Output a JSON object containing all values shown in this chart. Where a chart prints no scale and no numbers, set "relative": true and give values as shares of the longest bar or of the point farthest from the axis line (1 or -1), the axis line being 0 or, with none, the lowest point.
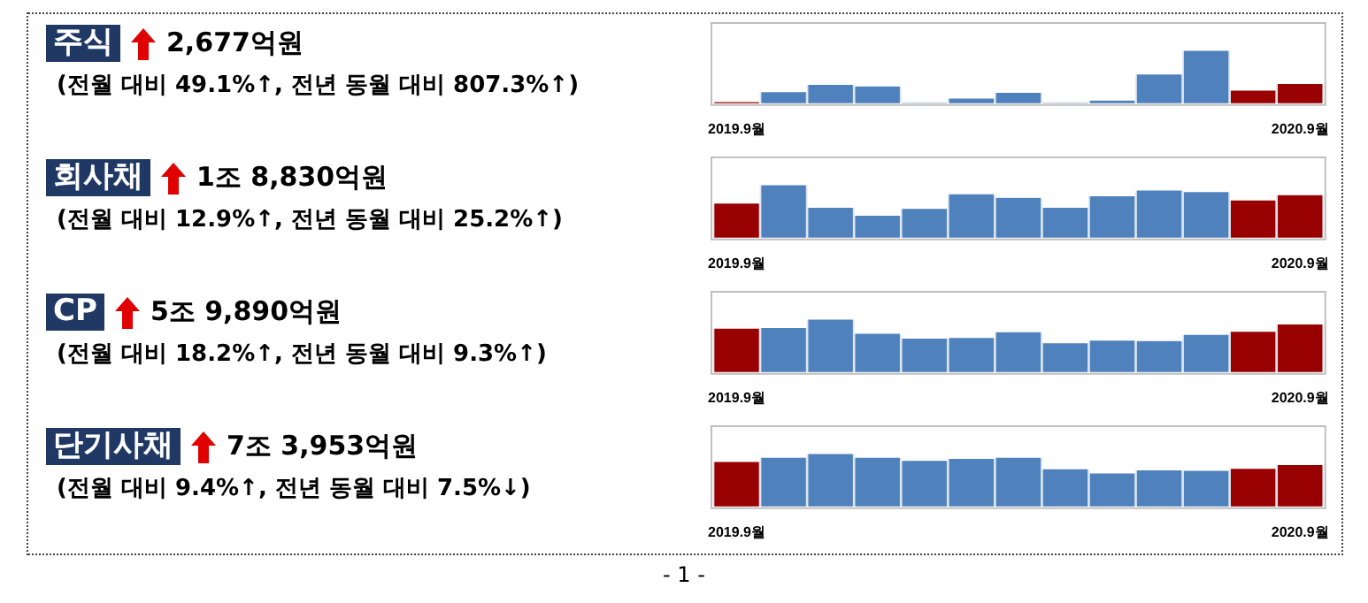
{
  "chart_data": [
    {
      "type": "bar",
      "annotations": [
        "주식",
        "2,677억원",
        "(전월 대비 49.1%↑, 전년 동월 대비 807.3%↑)"
      ],
      "relative": true,
      "categories": [
        "2019.9월",
        null,
        null,
        null,
        null,
        null,
        null,
        null,
        null,
        null,
        null,
        null,
        "2020.9월"
      ],
      "values": [
        0.02,
        0.21,
        0.35,
        0.32,
        0.01,
        0.09,
        0.2,
        0.01,
        0.05,
        0.55,
        1,
        0.24,
        0.37
      ],
      "colors": [
        "#990000",
        "#4f81bd",
        "#4f81bd",
        "#4f81bd",
        "#4f81bd",
        "#4f81bd",
        "#4f81bd",
        "#4f81bd",
        "#4f81bd",
        "#4f81bd",
        "#4f81bd",
        "#990000",
        "#990000"
      ]
    },
    {
      "type": "bar",
      "annotations": [
        "회사채",
        "1조 8,830억원",
        "(전월 대비 12.9%↑, 전년 동월 대비 25.2%↑)"
      ],
      "relative": true,
      "categories": [
        "2019.9월",
        null,
        null,
        null,
        null,
        null,
        null,
        null,
        null,
        null,
        null,
        null,
        "2020.9월"
      ],
      "values": [
        0.65,
        1,
        0.57,
        0.42,
        0.55,
        0.83,
        0.76,
        0.57,
        0.79,
        0.9,
        0.87,
        0.71,
        0.81
      ],
      "colors": [
        "#990000",
        "#4f81bd",
        "#4f81bd",
        "#4f81bd",
        "#4f81bd",
        "#4f81bd",
        "#4f81bd",
        "#4f81bd",
        "#4f81bd",
        "#4f81bd",
        "#4f81bd",
        "#990000",
        "#990000"
      ]
    },
    {
      "type": "bar",
      "annotations": [
        "CP",
        "5조 9,890억원",
        "(전월 대비 18.2%↑, 전년 동월 대비 9.3%↑)"
      ],
      "relative": true,
      "categories": [
        "2019.9월",
        null,
        null,
        null,
        null,
        null,
        null,
        null,
        null,
        null,
        null,
        null,
        "2020.9월"
      ],
      "values": [
        0.83,
        0.84,
        1,
        0.73,
        0.64,
        0.65,
        0.76,
        0.55,
        0.6,
        0.59,
        0.71,
        0.77,
        0.91
      ],
      "colors": [
        "#990000",
        "#4f81bd",
        "#4f81bd",
        "#4f81bd",
        "#4f81bd",
        "#4f81bd",
        "#4f81bd",
        "#4f81bd",
        "#4f81bd",
        "#4f81bd",
        "#4f81bd",
        "#990000",
        "#990000"
      ]
    },
    {
      "type": "bar",
      "annotations": [
        "단기사채",
        "7조 3,953억원",
        "(전월 대비 9.4%↑, 전년 동월 대비 7.5%↓)",
        "- 1 -"
      ],
      "relative": true,
      "categories": [
        "2019.9월",
        null,
        null,
        null,
        null,
        null,
        null,
        null,
        null,
        null,
        null,
        null,
        "2020.9월"
      ],
      "values": [
        0.85,
        0.93,
        1,
        0.93,
        0.87,
        0.91,
        0.93,
        0.71,
        0.63,
        0.69,
        0.68,
        0.72,
        0.79
      ],
      "colors": [
        "#990000",
        "#4f81bd",
        "#4f81bd",
        "#4f81bd",
        "#4f81bd",
        "#4f81bd",
        "#4f81bd",
        "#4f81bd",
        "#4f81bd",
        "#4f81bd",
        "#4f81bd",
        "#990000",
        "#990000"
      ]
    }
  ]
}
